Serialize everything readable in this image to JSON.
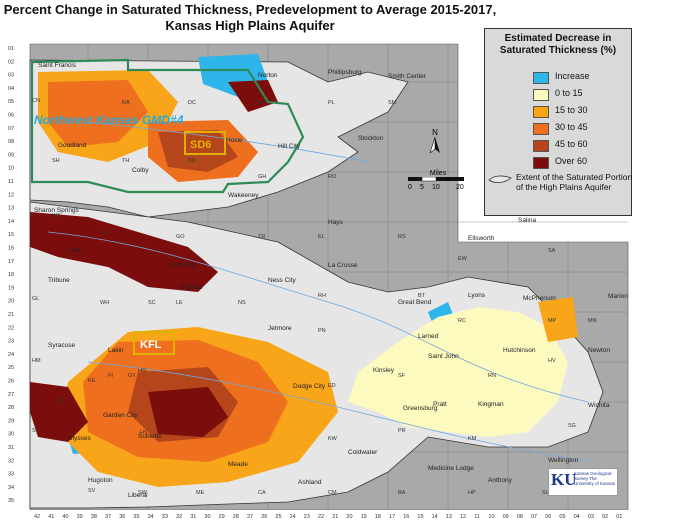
{
  "title": {
    "line1": "Percent Change in Saturated Thickness, Predevelopment to Average 2015-2017,",
    "line2": "Kansas High Plains Aquifer"
  },
  "legend": {
    "title_line1": "Estimated Decrease in",
    "title_line2": "Saturated Thickness (%)",
    "items": [
      {
        "label": "Increase",
        "color": "#2eb6ea"
      },
      {
        "label": "0 to 15",
        "color": "#fdfac0"
      },
      {
        "label": "15 to 30",
        "color": "#f9a51a"
      },
      {
        "label": "30 to 45",
        "color": "#ee6f1d"
      },
      {
        "label": "45 to 60",
        "color": "#b5451b"
      },
      {
        "label": "Over 60",
        "color": "#7b0d0d"
      }
    ],
    "extent_label": "Extent of the Saturated Portion of the High Plains Aquifer"
  },
  "north_arrow": {
    "label": "N"
  },
  "scale_bar": {
    "unit": "Miles",
    "ticks": [
      "0",
      "5",
      "10",
      "20"
    ]
  },
  "districts": {
    "gmd4": "Northwest Kansas GMD#4",
    "sd6": "SD6",
    "kfl": "KFL"
  },
  "places": [
    "Norton",
    "Phillipsburg",
    "Smith Center",
    "Stockton",
    "Hill City",
    "Hays",
    "Wakeeney",
    "Hoxie",
    "Goodland",
    "Colby",
    "Sharon Springs",
    "Ellsworth",
    "Salina",
    "La Crosse",
    "Ness City",
    "Dighton",
    "Tribune",
    "Great Bend",
    "Lyons",
    "McPherson",
    "Marion",
    "Larned",
    "Jetmore",
    "Syracuse",
    "Saint John",
    "Hutchinson",
    "Newton",
    "Kinsley",
    "Dodge City",
    "Greensburg",
    "Pratt",
    "Kingman",
    "Wichita",
    "Coldwater",
    "Medicine Lodge",
    "Wellington",
    "Anthony",
    "Ashland",
    "Meade",
    "Hugoton",
    "Liberal",
    "Sublette",
    "Scott City",
    "Leoti",
    "Saint Francis",
    "Garden City",
    "Lakin",
    "Ulysses"
  ],
  "county_codes": [
    "RA",
    "DC",
    "NT",
    "PL",
    "SM",
    "SH",
    "TH",
    "SD",
    "GH",
    "RO",
    "WA",
    "LG",
    "GO",
    "TR",
    "EL",
    "RS",
    "WH",
    "SC",
    "LE",
    "NS",
    "RH",
    "BT",
    "RC",
    "MP",
    "SA",
    "EW",
    "GL",
    "HM",
    "KE",
    "FI",
    "HG",
    "PN",
    "ED",
    "SF",
    "RN",
    "HV",
    "GT",
    "KW",
    "PR",
    "KM",
    "SG",
    "ST",
    "SV",
    "SW",
    "ME",
    "CA",
    "CM",
    "BA",
    "HP",
    "SU",
    "MN",
    "CN",
    "GY",
    "HS"
  ],
  "row_labels": [
    "01",
    "02",
    "03",
    "04",
    "05",
    "06",
    "07",
    "08",
    "09",
    "10",
    "11",
    "12",
    "13",
    "14",
    "15",
    "16",
    "17",
    "18",
    "19",
    "20",
    "21",
    "22",
    "23",
    "24",
    "25",
    "26",
    "27",
    "28",
    "29",
    "30",
    "31",
    "32",
    "33",
    "34",
    "35"
  ],
  "col_labels": [
    "42",
    "41",
    "40",
    "39",
    "38",
    "37",
    "36",
    "35",
    "34",
    "33",
    "32",
    "31",
    "30",
    "29",
    "28",
    "27",
    "26",
    "25",
    "24",
    "23",
    "22",
    "21",
    "20",
    "19",
    "18",
    "17",
    "16",
    "15",
    "14",
    "13",
    "12",
    "11",
    "10",
    "09",
    "08",
    "07",
    "06",
    "05",
    "04",
    "03",
    "02",
    "01"
  ],
  "ku_logo": {
    "mark": "KU",
    "text": "Kansas Geological Survey The University of Kansas"
  }
}
